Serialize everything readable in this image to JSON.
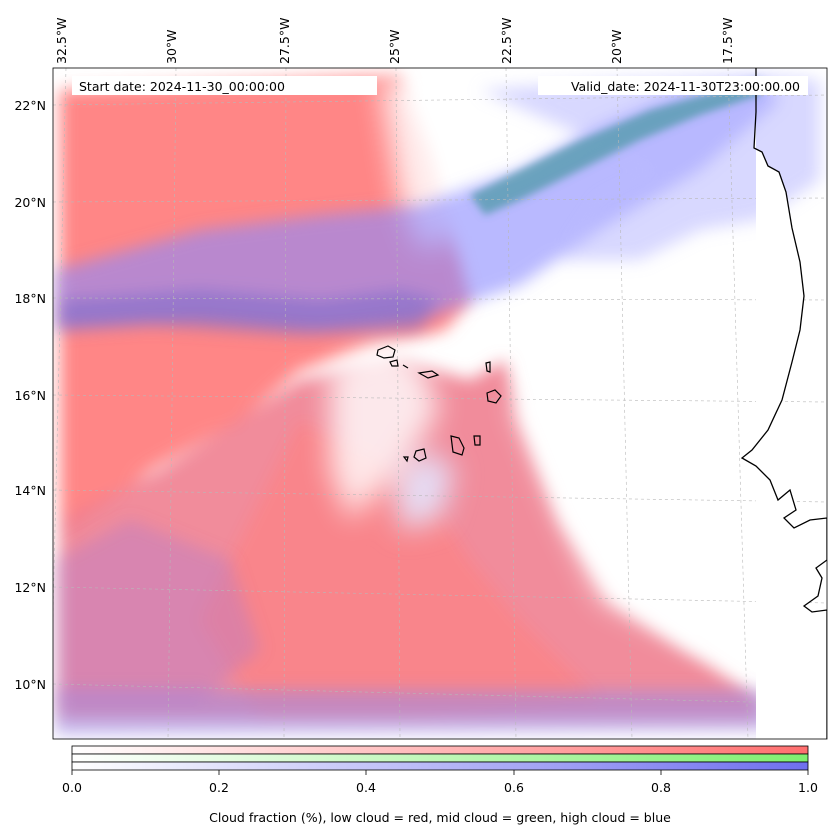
{
  "map": {
    "start_date": "Start date: 2024-11-30_00:00:00",
    "valid_date": "Valid_date: 2024-11-30T23:00:00.00",
    "lon_labels": [
      "32.5°W",
      "30°W",
      "27.5°W",
      "25°W",
      "22.5°W",
      "20°W",
      "17.5°W"
    ],
    "lat_labels": [
      "22°N",
      "20°N",
      "18°N",
      "16°N",
      "14°N",
      "12°N",
      "10°N"
    ],
    "colors": {
      "low": "#ff7f7f",
      "mid": "#7fff7f",
      "high": "#7f7fff",
      "coast": "#000000"
    }
  },
  "colorbar": {
    "ticks": [
      "0.0",
      "0.2",
      "0.4",
      "0.6",
      "0.8",
      "1.0"
    ],
    "label": "Cloud fraction (%), low cloud = red, mid cloud = green, high cloud = blue"
  }
}
